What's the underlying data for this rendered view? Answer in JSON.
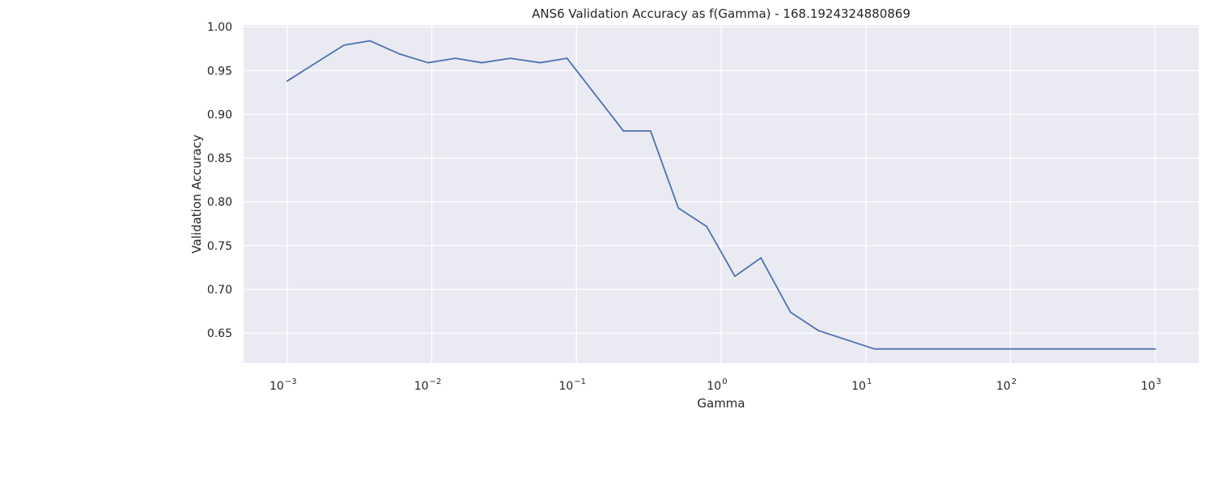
{
  "chart_data": {
    "type": "line",
    "title": "ANS6 Validation Accuracy as f(Gamma) - 168.1924324880869",
    "xlabel": "Gamma",
    "ylabel": "Validation Accuracy",
    "x_scale": "log",
    "xlim": [
      0.0005,
      2000
    ],
    "ylim": [
      0.616,
      1.002
    ],
    "grid": true,
    "background_color": "#eaeaf2",
    "grid_color": "#ffffff",
    "line_color": "#4c72b0",
    "x_ticks": [
      {
        "base": "10",
        "exp": "−3",
        "value": 0.001
      },
      {
        "base": "10",
        "exp": "−2",
        "value": 0.01
      },
      {
        "base": "10",
        "exp": "−1",
        "value": 0.1
      },
      {
        "base": "10",
        "exp": "0",
        "value": 1
      },
      {
        "base": "10",
        "exp": "1",
        "value": 10
      },
      {
        "base": "10",
        "exp": "2",
        "value": 100
      },
      {
        "base": "10",
        "exp": "3",
        "value": 1000
      }
    ],
    "y_ticks": [
      "0.65",
      "0.70",
      "0.75",
      "0.80",
      "0.85",
      "0.90",
      "0.95",
      "1.00"
    ],
    "series": [
      {
        "x": [
          0.001,
          0.00247,
          0.00373,
          0.00597,
          0.00942,
          0.01459,
          0.02218,
          0.03501,
          0.05614,
          0.08611,
          0.2114,
          0.3254,
          0.5063,
          0.7939,
          1.2457,
          1.8845,
          3.0177,
          4.6977,
          11.493,
          1000
        ],
        "y": [
          0.938,
          0.979,
          0.984,
          0.969,
          0.959,
          0.964,
          0.959,
          0.964,
          0.959,
          0.964,
          0.881,
          0.881,
          0.793,
          0.772,
          0.715,
          0.736,
          0.674,
          0.653,
          0.632,
          0.632
        ]
      }
    ]
  }
}
